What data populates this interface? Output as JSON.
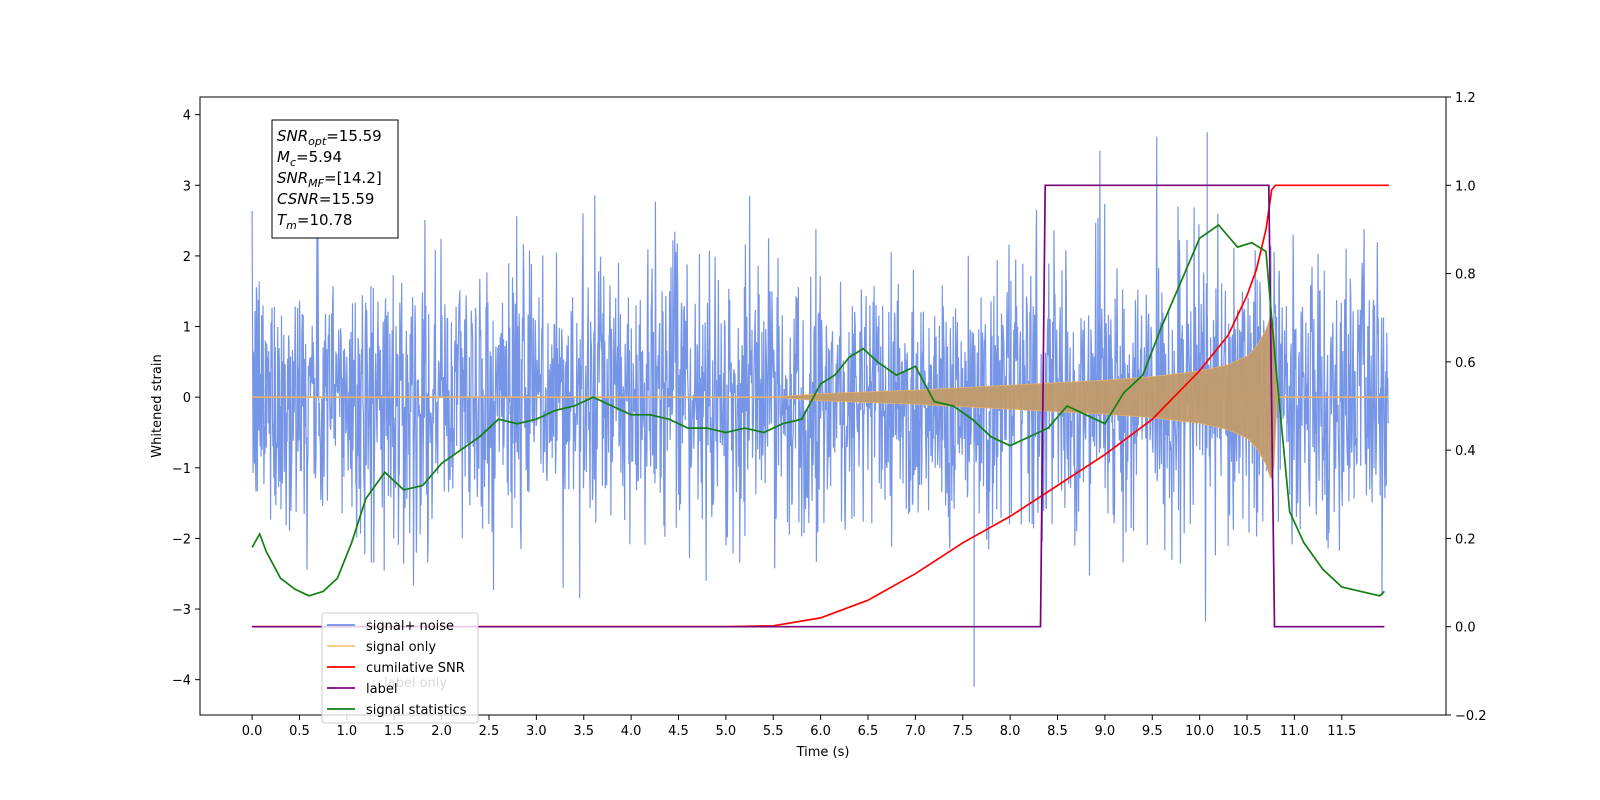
{
  "chart_data": {
    "type": "line",
    "xlabel": "Time (s)",
    "ylabel": "Whitened strain",
    "xlim": [
      -0.55,
      12.6
    ],
    "ylim_left": [
      -4.5,
      4.25
    ],
    "ylim_right": [
      -0.2,
      1.2
    ],
    "x_ticks": [
      "0.0",
      "0.5",
      "1.0",
      "1.5",
      "2.0",
      "2.5",
      "3.0",
      "3.5",
      "4.0",
      "4.5",
      "5.0",
      "5.5",
      "6.0",
      "6.5",
      "7.0",
      "7.5",
      "8.0",
      "8.5",
      "9.0",
      "9.5",
      "10.0",
      "10.5",
      "11.0",
      "11.5"
    ],
    "y_ticks_left": [
      "4",
      "3",
      "2",
      "1",
      "0",
      "−1",
      "−2",
      "−3",
      "−4"
    ],
    "y_ticks_right": [
      "1.2",
      "1.0",
      "0.8",
      "0.6",
      "0.4",
      "0.2",
      "0.0",
      "−0.2"
    ],
    "annotation": {
      "snr_opt": {
        "sym": "SNR",
        "sub": "opt",
        "val": "=15.59"
      },
      "mc": {
        "sym": "M",
        "sub": "c",
        "val": "=5.94"
      },
      "snr_mf": {
        "sym": "SNR",
        "sub": "MF",
        "val": "=[14.2]"
      },
      "csnr": {
        "sym": "CSNR",
        "sub": "",
        "val": "=15.59"
      },
      "tm": {
        "sym": "T",
        "sub": "m",
        "val": "=10.78"
      }
    },
    "legend": {
      "placement": "lower-left",
      "entries": [
        "signal+ noise",
        "signal only",
        "cumilative SNR",
        "label",
        "signal statistics"
      ],
      "overlapping_text": [
        "label only"
      ]
    },
    "series": [
      {
        "name": "signal+ noise",
        "axis": "left",
        "color": "#6f8fe6",
        "description": "whitened noise, t from 0 to 11.99 s",
        "std": 0.95,
        "peaks": [
          3.75,
          -4.1
        ]
      },
      {
        "name": "signal only",
        "axis": "left",
        "color": "#e7b06a",
        "description": "chirp envelope",
        "envelope": {
          "t": [
            5.5,
            6.0,
            7.0,
            8.0,
            9.0,
            9.5,
            10.0,
            10.3,
            10.5,
            10.6,
            10.7,
            10.75,
            10.78,
            10.82
          ],
          "amp": [
            0.0,
            0.05,
            0.1,
            0.17,
            0.24,
            0.29,
            0.37,
            0.46,
            0.58,
            0.72,
            0.95,
            1.15,
            1.1,
            0.0
          ]
        }
      },
      {
        "name": "cumilative SNR",
        "axis": "right",
        "color": "#ff0000",
        "x": [
          0.0,
          5.0,
          5.5,
          6.0,
          6.5,
          7.0,
          7.5,
          8.0,
          8.5,
          9.0,
          9.5,
          10.0,
          10.3,
          10.5,
          10.6,
          10.7,
          10.76,
          10.8,
          12.0
        ],
        "y": [
          0.0,
          0.0,
          0.002,
          0.02,
          0.06,
          0.12,
          0.19,
          0.25,
          0.32,
          0.39,
          0.47,
          0.58,
          0.66,
          0.75,
          0.81,
          0.9,
          0.99,
          1.0,
          1.0
        ]
      },
      {
        "name": "label",
        "axis": "right",
        "color": "#7b007b",
        "x": [
          0.0,
          8.32,
          8.37,
          10.73,
          10.79,
          11.95
        ],
        "y": [
          0.0,
          0.0,
          1.0,
          1.0,
          0.0,
          0.0
        ]
      },
      {
        "name": "signal statistics",
        "axis": "right",
        "color": "#138013",
        "x": [
          0.0,
          0.08,
          0.15,
          0.3,
          0.45,
          0.6,
          0.75,
          0.9,
          1.05,
          1.2,
          1.4,
          1.6,
          1.8,
          2.0,
          2.2,
          2.4,
          2.6,
          2.8,
          3.0,
          3.2,
          3.4,
          3.6,
          3.8,
          4.0,
          4.2,
          4.4,
          4.6,
          4.8,
          5.0,
          5.2,
          5.4,
          5.6,
          5.8,
          6.0,
          6.15,
          6.3,
          6.45,
          6.6,
          6.8,
          7.0,
          7.2,
          7.4,
          7.6,
          7.8,
          8.0,
          8.2,
          8.4,
          8.6,
          8.8,
          9.0,
          9.2,
          9.4,
          9.6,
          9.8,
          10.0,
          10.2,
          10.4,
          10.55,
          10.7,
          10.8,
          10.95,
          11.1,
          11.3,
          11.5,
          11.7,
          11.9,
          11.95
        ],
        "y": [
          0.18,
          0.21,
          0.17,
          0.11,
          0.085,
          0.07,
          0.08,
          0.11,
          0.19,
          0.29,
          0.35,
          0.31,
          0.32,
          0.37,
          0.4,
          0.43,
          0.47,
          0.46,
          0.47,
          0.49,
          0.5,
          0.52,
          0.5,
          0.48,
          0.48,
          0.47,
          0.45,
          0.45,
          0.44,
          0.45,
          0.44,
          0.46,
          0.47,
          0.55,
          0.57,
          0.61,
          0.63,
          0.6,
          0.57,
          0.59,
          0.51,
          0.5,
          0.47,
          0.43,
          0.41,
          0.43,
          0.45,
          0.5,
          0.48,
          0.46,
          0.53,
          0.57,
          0.68,
          0.78,
          0.88,
          0.91,
          0.86,
          0.87,
          0.85,
          0.6,
          0.26,
          0.19,
          0.13,
          0.09,
          0.08,
          0.07,
          0.08
        ]
      }
    ]
  }
}
